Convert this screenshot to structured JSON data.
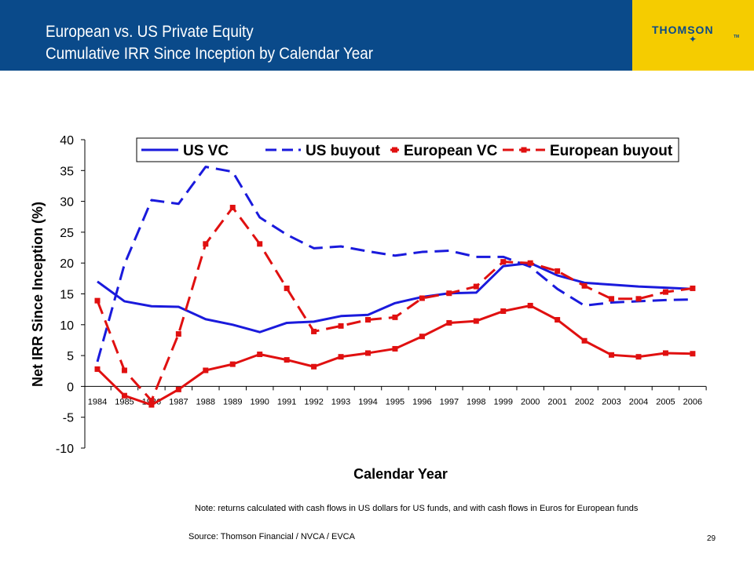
{
  "header": {
    "title_line1": "European vs. US Private Equity",
    "title_line2": "Cumulative IRR Since Inception by Calendar Year",
    "logo_text": "THOMSON",
    "logo_tm": "TM",
    "logo_star": "✦"
  },
  "colors": {
    "header_bg": "#0a4a8a",
    "logo_bg": "#f5cc00",
    "us_color": "#1a1adc",
    "eu_color": "#e01010"
  },
  "chart_data": {
    "type": "line",
    "title": "",
    "xlabel": "Calendar Year",
    "ylabel": "Net IRR Since Inception (%)",
    "ylim": [
      -10,
      40
    ],
    "yticks": [
      40,
      35,
      30,
      25,
      20,
      15,
      10,
      5,
      0,
      -5,
      -10
    ],
    "x": [
      "1984",
      "1985",
      "1986",
      "1987",
      "1988",
      "1989",
      "1990",
      "1991",
      "1992",
      "1993",
      "1994",
      "1995",
      "1996",
      "1997",
      "1998",
      "1999",
      "2000",
      "2001",
      "2002",
      "2003",
      "2004",
      "2005",
      "2006"
    ],
    "legend_position": "top",
    "series": [
      {
        "name": "US VC",
        "style": "solid",
        "marker": "none",
        "color": "#1a1adc",
        "values": [
          17.0,
          13.8,
          13.0,
          12.9,
          10.9,
          10.0,
          8.8,
          10.3,
          10.5,
          11.4,
          11.6,
          13.5,
          14.5,
          15.1,
          15.2,
          19.5,
          20.0,
          18.0,
          16.8,
          16.5,
          16.2,
          16.0,
          15.8
        ]
      },
      {
        "name": "US buyout",
        "style": "dashed",
        "marker": "none",
        "color": "#1a1adc",
        "values": [
          4.0,
          19.8,
          30.2,
          29.6,
          35.6,
          34.8,
          27.4,
          24.6,
          22.4,
          22.7,
          21.9,
          21.2,
          21.8,
          22.0,
          21.0,
          21.0,
          19.4,
          15.8,
          13.1,
          13.6,
          13.8,
          14.0,
          14.1
        ]
      },
      {
        "name": "European VC",
        "style": "solid",
        "marker": "square",
        "color": "#e01010",
        "values": [
          2.8,
          -1.5,
          -3.0,
          -0.5,
          2.6,
          3.6,
          5.2,
          4.3,
          3.2,
          4.8,
          5.4,
          6.1,
          8.1,
          10.3,
          10.6,
          12.2,
          13.1,
          10.8,
          7.4,
          5.1,
          4.8,
          5.4,
          5.3
        ]
      },
      {
        "name": "European buyout",
        "style": "dashed",
        "marker": "square",
        "color": "#e01010",
        "values": [
          13.9,
          2.6,
          -2.3,
          8.5,
          23.1,
          29.0,
          23.1,
          15.9,
          8.9,
          9.8,
          10.8,
          11.2,
          14.3,
          15.1,
          16.2,
          20.2,
          20.0,
          18.7,
          16.3,
          14.2,
          14.2,
          15.3,
          15.9
        ]
      }
    ]
  },
  "footer": {
    "note": "Note: returns calculated with cash flows in US dollars for US funds, and with cash flows in Euros for European funds",
    "source": "Source: Thomson Financial / NVCA / EVCA",
    "page_number": "29"
  }
}
